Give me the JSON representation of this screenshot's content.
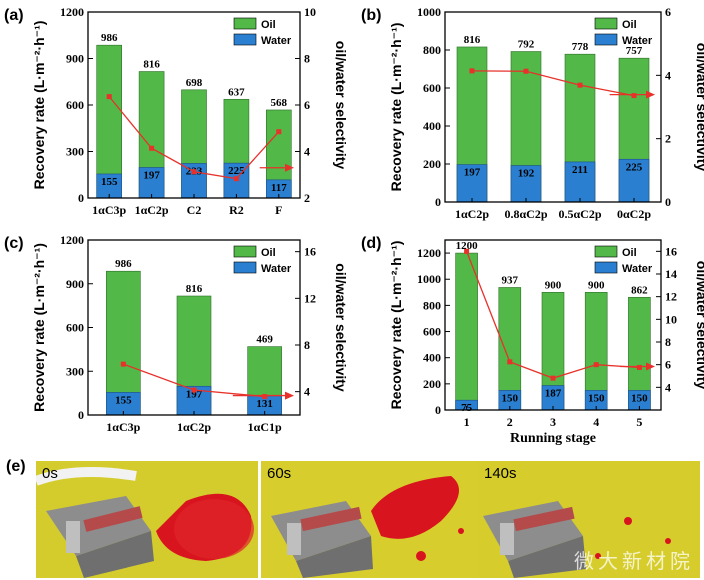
{
  "panel_e_label": "(e)",
  "photos": [
    {
      "time": "0s"
    },
    {
      "time": "60s"
    },
    {
      "time": "140s",
      "watermark": "微大新材院"
    }
  ],
  "colors": {
    "oil": "#52b848",
    "water": "#2a7fd0",
    "line": "#e8312a",
    "photo_bg": "#d9cf2a",
    "oil_red": "#d8141e"
  },
  "chart_data": [
    {
      "panel": "(a)",
      "type": "bar",
      "categories": [
        "1αC3p",
        "1αC2p",
        "C2",
        "R2",
        "F"
      ],
      "series": [
        {
          "name": "Oil",
          "values": [
            986,
            816,
            698,
            637,
            568
          ]
        },
        {
          "name": "Water",
          "values": [
            155,
            197,
            223,
            225,
            117
          ]
        }
      ],
      "selectivity": [
        6.36,
        4.14,
        3.13,
        2.83,
        4.85
      ],
      "ylabel": "Recovery rate (L·m⁻²·h⁻¹)",
      "ylim": [
        0,
        1200
      ],
      "yticks": [
        0,
        300,
        600,
        900,
        1200
      ],
      "y2label": "oil/water selectivity",
      "y2lim": [
        2,
        10
      ],
      "y2ticks": [
        2,
        4,
        6,
        8,
        10
      ],
      "xlabel": "",
      "legend": "top-right",
      "arrow": "right"
    },
    {
      "panel": "(b)",
      "type": "bar",
      "categories": [
        "1αC2p",
        "0.8αC2p",
        "0.5αC2p",
        "0αC2p"
      ],
      "series": [
        {
          "name": "Oil",
          "values": [
            816,
            792,
            778,
            757
          ]
        },
        {
          "name": "Water",
          "values": [
            197,
            192,
            211,
            225
          ]
        }
      ],
      "selectivity": [
        4.14,
        4.13,
        3.69,
        3.36
      ],
      "ylabel": "Recovery rate (L·m⁻²·h⁻¹)",
      "ylim": [
        0,
        1000
      ],
      "yticks": [
        0,
        200,
        400,
        600,
        800,
        1000
      ],
      "y2label": "oil/water selectivity",
      "y2lim": [
        0,
        6
      ],
      "y2ticks": [
        0,
        2,
        4,
        6
      ],
      "xlabel": "",
      "legend": "top-right",
      "arrow": "right"
    },
    {
      "panel": "(c)",
      "type": "bar",
      "categories": [
        "1αC3p",
        "1αC2p",
        "1αC1p"
      ],
      "series": [
        {
          "name": "Oil",
          "values": [
            986,
            816,
            469
          ]
        },
        {
          "name": "Water",
          "values": [
            155,
            197,
            131
          ]
        }
      ],
      "selectivity": [
        6.36,
        4.14,
        3.58
      ],
      "ylabel": "Recovery rate (L·m⁻²·h⁻¹)",
      "ylim": [
        0,
        1200
      ],
      "yticks": [
        0,
        300,
        600,
        900,
        1200
      ],
      "y2label": "oil/water selectivity",
      "y2lim": [
        2,
        17
      ],
      "y2ticks": [
        4,
        8,
        12,
        16
      ],
      "xlabel": "",
      "legend": "top-right",
      "arrow": "right"
    },
    {
      "panel": "(d)",
      "type": "bar",
      "categories": [
        "1",
        "2",
        "3",
        "4",
        "5"
      ],
      "series": [
        {
          "name": "Oil",
          "values": [
            1200,
            937,
            900,
            900,
            862
          ]
        },
        {
          "name": "Water",
          "values": [
            75,
            150,
            187,
            150,
            150
          ]
        }
      ],
      "selectivity": [
        16.0,
        6.25,
        4.81,
        6.0,
        5.75
      ],
      "ylabel": "Recovery rate (L·m⁻²·h⁻¹)",
      "ylim": [
        0,
        1300
      ],
      "yticks": [
        0,
        200,
        400,
        600,
        800,
        1000,
        1200
      ],
      "y2label": "oil/water selectivity",
      "y2lim": [
        2,
        17
      ],
      "y2ticks": [
        4,
        6,
        8,
        10,
        12,
        14,
        16
      ],
      "xlabel": "Running stage",
      "legend": "top-right",
      "arrow": "right"
    }
  ]
}
